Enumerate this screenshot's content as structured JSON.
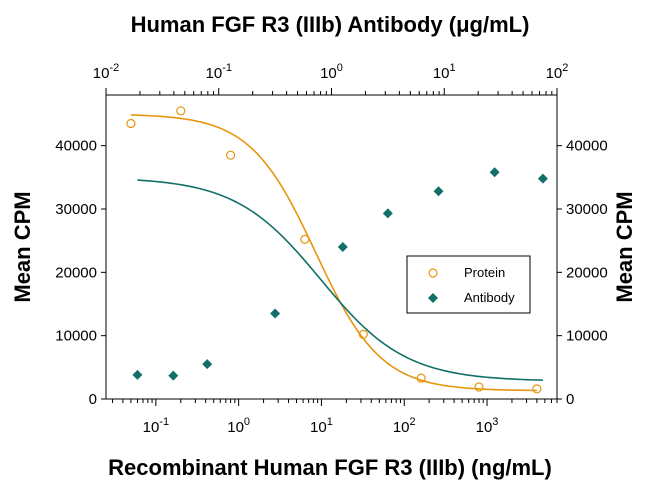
{
  "chart_data": {
    "type": "scatter",
    "title": "Human FGF R3 (IIIb) Antibody (μg/mL)",
    "xlabel": "Recombinant Human FGF R3 (IIIb) (ng/mL)",
    "ylabel": "Mean CPM",
    "ylabel_right": "Mean CPM",
    "x_scale": "log",
    "xlim_bottom": [
      0.025,
      7000
    ],
    "xlim_top": [
      0.01,
      100
    ],
    "ylim": [
      0,
      48000
    ],
    "bottom_ticks": [
      {
        "value": 0.1,
        "base": "10",
        "exp": "-1"
      },
      {
        "value": 1,
        "base": "10",
        "exp": "0"
      },
      {
        "value": 10,
        "base": "10",
        "exp": "1"
      },
      {
        "value": 100,
        "base": "10",
        "exp": "2"
      },
      {
        "value": 1000,
        "base": "10",
        "exp": "3"
      }
    ],
    "top_ticks": [
      {
        "value": 0.01,
        "base": "10",
        "exp": "-2"
      },
      {
        "value": 0.1,
        "base": "10",
        "exp": "-1"
      },
      {
        "value": 1,
        "base": "10",
        "exp": "0"
      },
      {
        "value": 10,
        "base": "10",
        "exp": "1"
      },
      {
        "value": 100,
        "base": "10",
        "exp": "2"
      }
    ],
    "y_ticks": [
      0,
      10000,
      20000,
      30000,
      40000
    ],
    "y_tick_labels": [
      "0",
      "10000",
      "20000",
      "30000",
      "40000"
    ],
    "legend_position": "center-right",
    "series": [
      {
        "name": "Protein",
        "axis": "bottom",
        "marker": "circle-open",
        "color": "#e8950e",
        "x": [
          0.05,
          0.2,
          0.8,
          6.3,
          32,
          160,
          800,
          4000
        ],
        "y": [
          43500,
          45500,
          38500,
          25200,
          10200,
          3300,
          1900,
          1600
        ],
        "fit": {
          "bottom": 1300,
          "top": 45000,
          "ec50": 8.5,
          "hill": 1.1
        }
      },
      {
        "name": "Antibody",
        "axis": "top",
        "marker": "diamond-filled",
        "color": "#127068",
        "x": [
          0.019,
          0.0395,
          0.079,
          0.316,
          1.26,
          3.16,
          8.9,
          28,
          75
        ],
        "y": [
          3800,
          3700,
          5500,
          13500,
          24000,
          29300,
          32800,
          35800,
          34800
        ],
        "fit": {
          "bottom": 2800,
          "top": 35000,
          "ec50": 0.8,
          "hill": 1.15
        }
      }
    ]
  }
}
